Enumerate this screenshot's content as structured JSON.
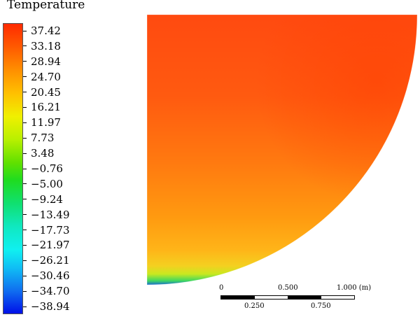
{
  "legend": {
    "title": "Temperature",
    "ticks": [
      "37.42",
      "33.18",
      "28.94",
      "24.70",
      "20.45",
      "16.21",
      "11.97",
      "7.73",
      "3.48",
      "−0.76",
      "−5.00",
      "−9.24",
      "−13.49",
      "−17.73",
      "−21.97",
      "−26.21",
      "−30.46",
      "−34.70",
      "−38.94"
    ]
  },
  "scale_bar": {
    "top_labels": [
      "0",
      "0.500",
      "1.000 (m)"
    ],
    "bottom_labels": [
      "0.250",
      "0.750"
    ]
  }
}
